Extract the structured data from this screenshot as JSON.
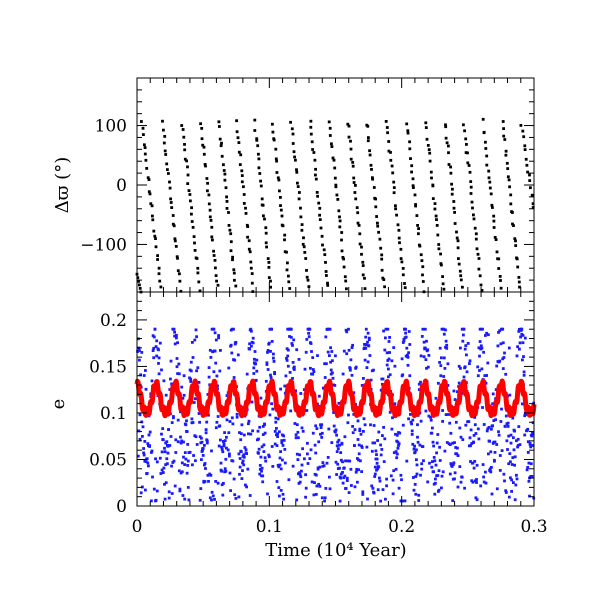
{
  "chart_data": [
    {
      "type": "scatter",
      "panel": "top",
      "ylabel": "Δϖ (°)",
      "ylim": [
        -180,
        180
      ],
      "xlim": [
        0,
        0.3
      ],
      "y_ticks": [
        -100,
        0,
        100
      ],
      "y_tick_labels": [
        "−100",
        "0",
        "100"
      ],
      "grid": false,
      "series": [
        {
          "color": "#000000",
          "marker": "square-dot",
          "pattern": "sawtooth circulation of Δϖ",
          "drop_times": [
            0.0035,
            0.0195,
            0.034,
            0.0485,
            0.062,
            0.0755,
            0.089,
            0.1025,
            0.1165,
            0.131,
            0.1455,
            0.1595,
            0.1735,
            0.1885,
            0.204,
            0.2185,
            0.233,
            0.247,
            0.2615,
            0.2765,
            0.2905
          ],
          "values_range": [
            -180,
            180
          ]
        }
      ]
    },
    {
      "type": "scatter",
      "panel": "bottom",
      "xlabel": "Time (10⁴ Year)",
      "ylabel": "e",
      "ylim": [
        0,
        0.23
      ],
      "xlim": [
        0,
        0.3
      ],
      "x_ticks": [
        0,
        0.1,
        0.2,
        0.3
      ],
      "x_tick_labels": [
        "0",
        "0.1",
        "0.2",
        "0.3"
      ],
      "y_ticks": [
        0,
        0.05,
        0.1,
        0.15,
        0.2
      ],
      "y_tick_labels": [
        "0",
        "0.05",
        "0.1",
        "0.15",
        "0.2"
      ],
      "grid": false,
      "series": [
        {
          "color": "#1a1aff",
          "marker": "square-dot",
          "values_range": [
            0.005,
            0.19
          ],
          "period": 0.0145
        },
        {
          "color": "#ff0000",
          "marker": "thick-line",
          "values_range": [
            0.1,
            0.132
          ],
          "period": 0.0145
        }
      ]
    }
  ]
}
